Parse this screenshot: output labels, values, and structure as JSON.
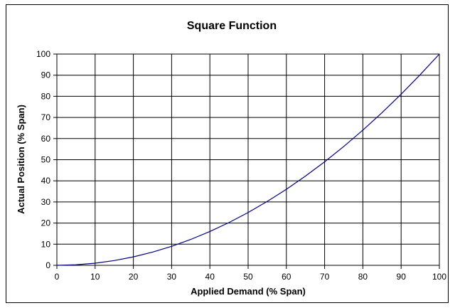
{
  "chart_data": {
    "type": "line",
    "title": "Square Function",
    "xlabel": "Applied Demand (% Span)",
    "ylabel": "Actual Position (% Span)",
    "xlim": [
      0,
      100
    ],
    "ylim": [
      0,
      100
    ],
    "xticks": [
      0,
      10,
      20,
      30,
      40,
      50,
      60,
      70,
      80,
      90,
      100
    ],
    "yticks": [
      0,
      10,
      20,
      30,
      40,
      50,
      60,
      70,
      80,
      90,
      100
    ],
    "grid": true,
    "legend": "none",
    "line_color": "#000080",
    "series": [
      {
        "x": [
          0,
          5,
          10,
          15,
          20,
          25,
          30,
          35,
          40,
          45,
          50,
          55,
          60,
          65,
          70,
          75,
          80,
          85,
          90,
          95,
          100
        ],
        "y": [
          0,
          0.25,
          1,
          2.25,
          4,
          6.25,
          9,
          12.25,
          16,
          20.25,
          25,
          30.25,
          36,
          42.25,
          49,
          56.25,
          64,
          72.25,
          81,
          90.25,
          100
        ]
      }
    ]
  }
}
